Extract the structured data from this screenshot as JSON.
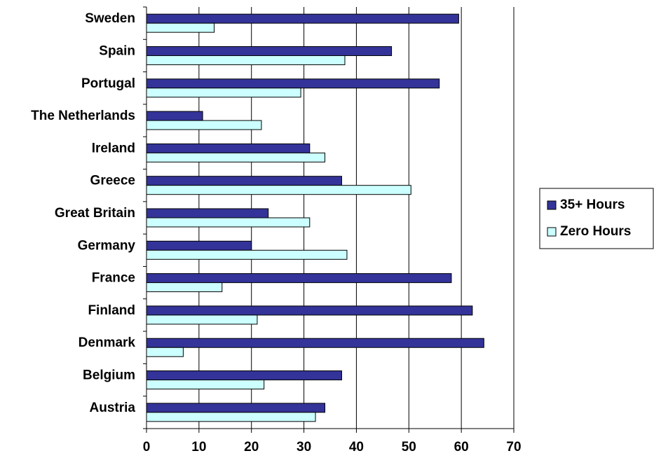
{
  "chart_data": {
    "type": "bar",
    "orientation": "horizontal",
    "categories": [
      "Sweden",
      "Spain",
      "Portugal",
      "The Netherlands",
      "Ireland",
      "Greece",
      "Great Britain",
      "Germany",
      "France",
      "Finland",
      "Denmark",
      "Belgium",
      "Austria"
    ],
    "series": [
      {
        "name": "35+ Hours",
        "color": "#333399",
        "values": [
          59.5,
          46.7,
          55.8,
          10.7,
          31.1,
          37.2,
          23.2,
          20.0,
          58.1,
          62.1,
          64.3,
          37.2,
          34.0
        ]
      },
      {
        "name": "Zero Hours",
        "color": "#CCFFFF",
        "values": [
          12.9,
          37.8,
          29.4,
          21.9,
          34.0,
          50.4,
          31.1,
          38.2,
          14.4,
          21.1,
          7.0,
          22.4,
          32.2
        ]
      }
    ],
    "xlim": [
      0,
      70
    ],
    "xticks": [
      0,
      10,
      20,
      30,
      40,
      50,
      60,
      70
    ],
    "grid": true,
    "legend_position": "right"
  }
}
